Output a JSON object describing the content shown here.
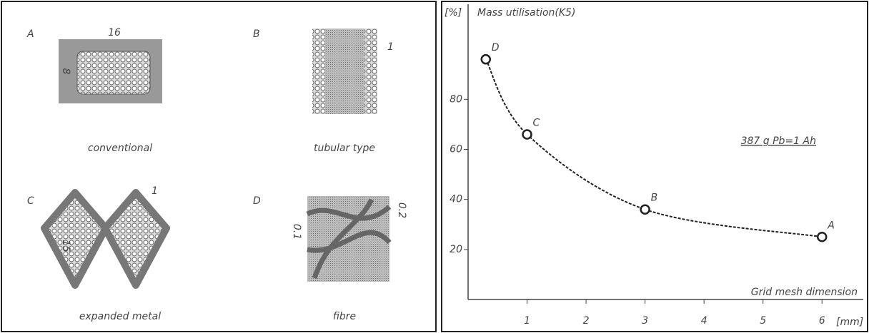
{
  "grid_types": [
    {
      "letter": "A",
      "caption": "conventional",
      "dims": [
        "16",
        "8"
      ]
    },
    {
      "letter": "B",
      "caption": "tubular type",
      "dims": [
        "1"
      ]
    },
    {
      "letter": "C",
      "caption": "expanded metal",
      "dims": [
        "1",
        "15"
      ]
    },
    {
      "letter": "D",
      "caption": "fibre",
      "dims": [
        "0.1",
        "0.2"
      ]
    }
  ],
  "chart_data": {
    "type": "line",
    "y_unit": "[%]",
    "y_label": "Mass utilisation(K5)",
    "x_label": "Grid mesh dimension",
    "x_unit": "[mm]",
    "annotation": "387 g Pb=1 Ah",
    "x": [
      0.3,
      1,
      3,
      6
    ],
    "series": [
      {
        "color": "#222222",
        "values": [
          96,
          66,
          36,
          25
        ],
        "point_labels": [
          "D",
          "C",
          "B",
          "A"
        ]
      }
    ],
    "xlim": [
      0,
      6.7
    ],
    "ylim": [
      0,
      118
    ],
    "xticks": [
      1,
      2,
      3,
      4,
      5,
      6
    ],
    "yticks": [
      20,
      40,
      60,
      80
    ]
  }
}
